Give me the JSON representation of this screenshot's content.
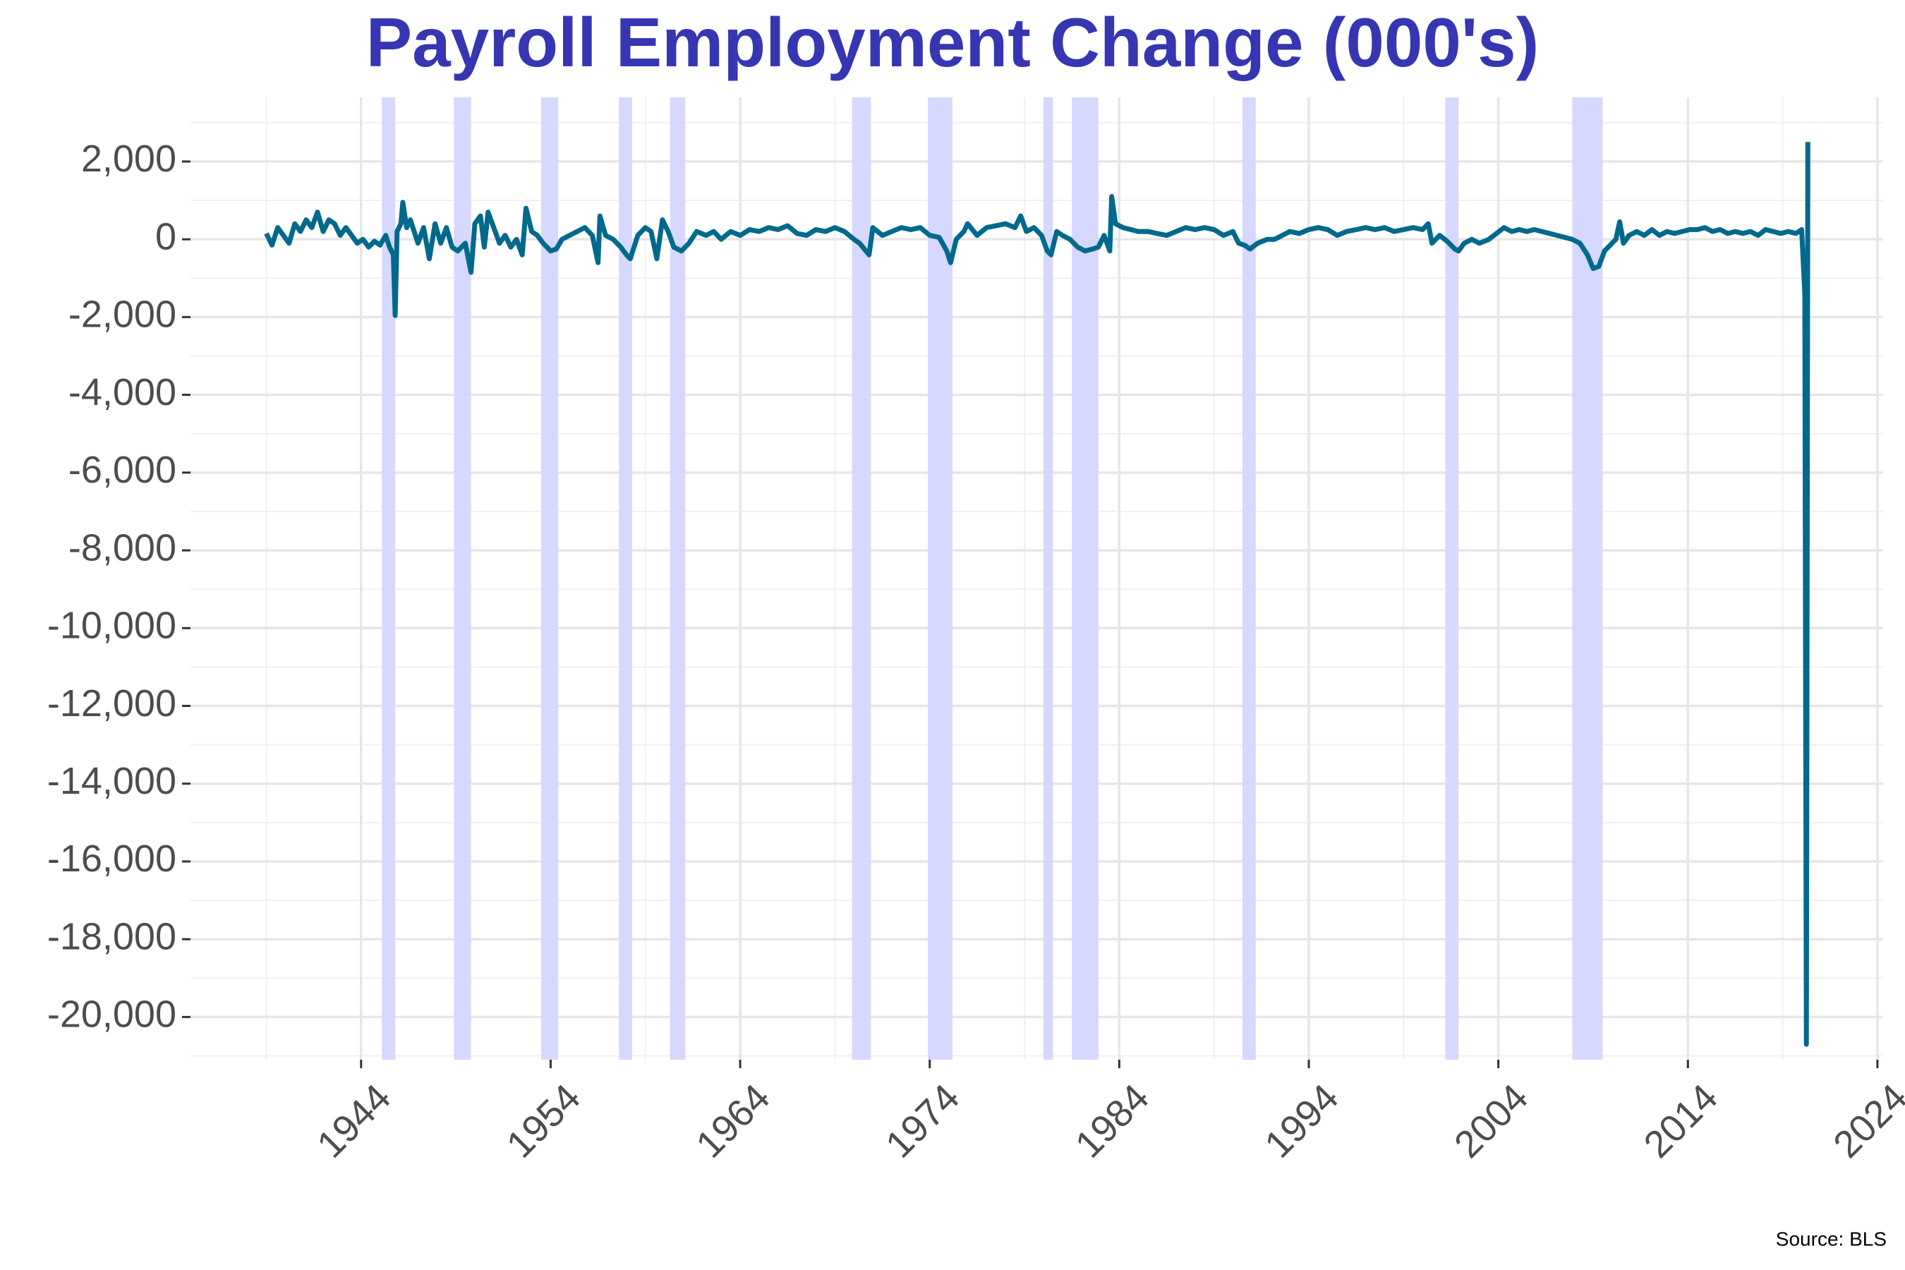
{
  "chart_data": {
    "type": "line",
    "title": "Payroll Employment Change (000's)",
    "source": "Source: BLS",
    "xlim": [
      1935,
      2024.3
    ],
    "ylim": [
      -21100,
      3650
    ],
    "xticks": [
      1944,
      1954,
      1964,
      1974,
      1984,
      1994,
      2004,
      2014,
      2024
    ],
    "xminor": [
      1939,
      1949,
      1959,
      1969,
      1979,
      1989,
      1999,
      2009,
      2019
    ],
    "yticks": [
      {
        "value": 2000,
        "label": "2,000"
      },
      0,
      {
        "value": -2000,
        "label": "-2,000"
      },
      {
        "value": -4000,
        "label": "-4,000"
      },
      {
        "value": -6000,
        "label": "-6,000"
      },
      {
        "value": -8000,
        "label": "-8,000"
      },
      {
        "value": -10000,
        "label": "-10,000"
      },
      {
        "value": -12000,
        "label": "-12,000"
      },
      {
        "value": -14000,
        "label": "-14,000"
      },
      {
        "value": -16000,
        "label": "-16,000"
      },
      {
        "value": -18000,
        "label": "-18,000"
      },
      {
        "value": -20000,
        "label": "-20,000"
      }
    ],
    "yminor": [
      3000,
      1000,
      -1000,
      -3000,
      -5000,
      -7000,
      -9000,
      -11000,
      -13000,
      -15000,
      -17000,
      -19000,
      -21000
    ],
    "grid": true,
    "recession_color": "#d5d6ff",
    "recessions": [
      [
        1945.1,
        1945.8
      ],
      [
        1948.9,
        1949.8
      ],
      [
        1953.5,
        1954.4
      ],
      [
        1957.6,
        1958.3
      ],
      [
        1960.3,
        1961.1
      ],
      [
        1969.9,
        1970.9
      ],
      [
        1973.9,
        1975.2
      ],
      [
        1980.0,
        1980.5
      ],
      [
        1981.5,
        1982.9
      ],
      [
        1990.5,
        1991.2
      ],
      [
        2001.2,
        2001.9
      ],
      [
        2007.9,
        2009.5
      ]
    ],
    "series": [
      {
        "color": "#00698c",
        "x": [
          1939.0,
          1939.3,
          1939.6,
          1939.9,
          1940.2,
          1940.5,
          1940.8,
          1941.1,
          1941.4,
          1941.7,
          1942.0,
          1942.3,
          1942.6,
          1942.9,
          1943.2,
          1943.5,
          1943.8,
          1944.1,
          1944.4,
          1944.7,
          1945.0,
          1945.3,
          1945.5,
          1945.7,
          1945.8,
          1945.9,
          1946.1,
          1946.2,
          1946.4,
          1946.6,
          1946.8,
          1947.0,
          1947.3,
          1947.6,
          1947.9,
          1948.2,
          1948.5,
          1948.8,
          1949.1,
          1949.5,
          1949.8,
          1950.0,
          1950.3,
          1950.5,
          1950.7,
          1951.0,
          1951.3,
          1951.6,
          1951.9,
          1952.2,
          1952.5,
          1952.7,
          1953.0,
          1953.3,
          1953.6,
          1954.0,
          1954.3,
          1954.6,
          1955.0,
          1955.4,
          1955.8,
          1956.2,
          1956.5,
          1956.6,
          1956.9,
          1957.3,
          1957.7,
          1958.0,
          1958.2,
          1958.6,
          1959.0,
          1959.3,
          1959.6,
          1959.9,
          1960.2,
          1960.5,
          1960.9,
          1961.3,
          1961.7,
          1962.2,
          1962.6,
          1963.0,
          1963.5,
          1964.0,
          1964.5,
          1965.0,
          1965.5,
          1966.0,
          1966.5,
          1967.0,
          1967.5,
          1968.0,
          1968.5,
          1969.0,
          1969.5,
          1970.0,
          1970.3,
          1970.8,
          1971.0,
          1971.5,
          1972.0,
          1972.5,
          1973.0,
          1973.5,
          1974.0,
          1974.5,
          1974.9,
          1975.1,
          1975.4,
          1975.8,
          1976.0,
          1976.5,
          1977.0,
          1977.5,
          1978.0,
          1978.5,
          1978.8,
          1979.1,
          1979.5,
          1979.9,
          1980.2,
          1980.4,
          1980.7,
          1981.0,
          1981.4,
          1981.8,
          1982.2,
          1982.6,
          1982.9,
          1983.2,
          1983.5,
          1983.6,
          1983.8,
          1984.2,
          1984.6,
          1985.0,
          1985.5,
          1986.0,
          1986.5,
          1987.0,
          1987.5,
          1988.0,
          1988.5,
          1989.0,
          1989.5,
          1990.0,
          1990.3,
          1990.6,
          1990.9,
          1991.3,
          1991.8,
          1992.2,
          1992.6,
          1993.0,
          1993.5,
          1994.0,
          1994.5,
          1995.0,
          1995.5,
          1996.0,
          1996.5,
          1997.0,
          1997.5,
          1998.0,
          1998.5,
          1999.0,
          1999.5,
          2000.0,
          2000.3,
          2000.5,
          2000.9,
          2001.3,
          2001.7,
          2001.9,
          2002.2,
          2002.6,
          2003.0,
          2003.5,
          2003.9,
          2004.3,
          2004.7,
          2005.1,
          2005.5,
          2005.9,
          2006.3,
          2006.7,
          2007.1,
          2007.5,
          2007.9,
          2008.3,
          2008.7,
          2009.0,
          2009.3,
          2009.6,
          2009.9,
          2010.2,
          2010.4,
          2010.6,
          2010.9,
          2011.3,
          2011.7,
          2012.1,
          2012.5,
          2012.9,
          2013.3,
          2013.7,
          2014.1,
          2014.5,
          2014.9,
          2015.3,
          2015.7,
          2016.1,
          2016.5,
          2016.9,
          2017.3,
          2017.7,
          2018.1,
          2018.5,
          2018.9,
          2019.3,
          2019.7,
          2020.0,
          2020.17,
          2020.25,
          2020.33
        ],
        "values": [
          150,
          -150,
          300,
          100,
          -100,
          400,
          200,
          500,
          300,
          700,
          200,
          500,
          400,
          100,
          300,
          100,
          -100,
          0,
          -200,
          -50,
          -150,
          100,
          -200,
          -400,
          -1960,
          200,
          400,
          950,
          300,
          500,
          200,
          -100,
          300,
          -500,
          400,
          -100,
          300,
          -200,
          -300,
          -100,
          -850,
          400,
          600,
          -200,
          700,
          300,
          -100,
          100,
          -200,
          0,
          -400,
          800,
          200,
          100,
          -100,
          -300,
          -250,
          0,
          100,
          200,
          300,
          100,
          -600,
          600,
          100,
          0,
          -200,
          -400,
          -500,
          100,
          300,
          200,
          -500,
          500,
          200,
          -200,
          -300,
          -100,
          200,
          100,
          200,
          0,
          200,
          100,
          250,
          200,
          300,
          250,
          350,
          150,
          100,
          250,
          200,
          300,
          200,
          0,
          -100,
          -400,
          300,
          100,
          200,
          300,
          250,
          300,
          100,
          50,
          -300,
          -600,
          0,
          200,
          400,
          100,
          300,
          350,
          400,
          300,
          600,
          200,
          300,
          100,
          -300,
          -400,
          200,
          100,
          0,
          -200,
          -300,
          -250,
          -200,
          100,
          -300,
          1100,
          400,
          300,
          250,
          200,
          200,
          150,
          100,
          200,
          300,
          250,
          300,
          250,
          100,
          200,
          -100,
          -150,
          -250,
          -100,
          0,
          0,
          100,
          200,
          150,
          250,
          300,
          250,
          100,
          200,
          250,
          300,
          250,
          300,
          200,
          250,
          300,
          250,
          400,
          -100,
          100,
          -50,
          -250,
          -300,
          -100,
          0,
          -100,
          0,
          150,
          300,
          200,
          250,
          200,
          250,
          200,
          150,
          100,
          50,
          0,
          -100,
          -400,
          -750,
          -700,
          -300,
          -150,
          0,
          450,
          -100,
          100,
          200,
          100,
          250,
          100,
          200,
          150,
          200,
          250,
          250,
          300,
          200,
          250,
          150,
          200,
          150,
          200,
          100,
          250,
          200,
          150,
          200,
          150,
          250,
          -1400,
          -20700,
          2500
        ]
      }
    ]
  }
}
